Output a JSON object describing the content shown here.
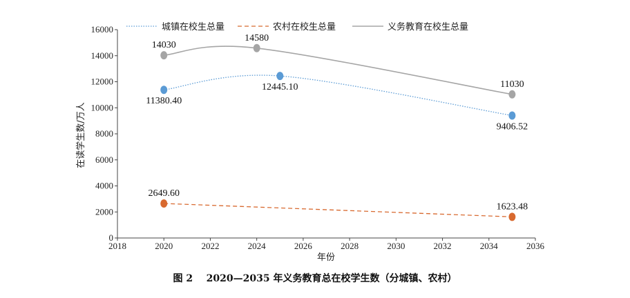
{
  "caption": "图 2    2020—2035 年义务教育总在校学生数（分城镇、农村）",
  "chart_data": {
    "type": "line",
    "title": "",
    "xlabel": "年份",
    "ylabel": "在读学生数/万人",
    "xlim": [
      2018,
      2036
    ],
    "ylim": [
      0,
      16000
    ],
    "xticks": [
      2018,
      2020,
      2022,
      2024,
      2026,
      2028,
      2030,
      2032,
      2034,
      2036
    ],
    "yticks": [
      0,
      2000,
      4000,
      6000,
      8000,
      10000,
      12000,
      14000,
      16000
    ],
    "grid": false,
    "legend_position": "top",
    "series": [
      {
        "name": "城镇在校生总量",
        "color": "#5b9bd5",
        "line_style": "dotted",
        "points": [
          {
            "x": 2020,
            "y": 11380.4,
            "label": "11380.40",
            "label_pos": "below"
          },
          {
            "x": 2025,
            "y": 12445.1,
            "label": "12445.10",
            "label_pos": "below"
          },
          {
            "x": 2035,
            "y": 9406.52,
            "label": "9406.52",
            "label_pos": "below"
          }
        ]
      },
      {
        "name": "农村在校生总量",
        "color": "#d8692f",
        "line_style": "dashed",
        "points": [
          {
            "x": 2020,
            "y": 2649.6,
            "label": "2649.60",
            "label_pos": "above"
          },
          {
            "x": 2035,
            "y": 1623.48,
            "label": "1623.48",
            "label_pos": "above"
          }
        ]
      },
      {
        "name": "义务教育在校生总量",
        "color": "#a5a5a5",
        "line_style": "solid",
        "points": [
          {
            "x": 2020,
            "y": 14030,
            "label": "14030",
            "label_pos": "above"
          },
          {
            "x": 2024,
            "y": 14580,
            "label": "14580",
            "label_pos": "above"
          },
          {
            "x": 2035,
            "y": 11030,
            "label": "11030",
            "label_pos": "above"
          }
        ]
      }
    ]
  }
}
